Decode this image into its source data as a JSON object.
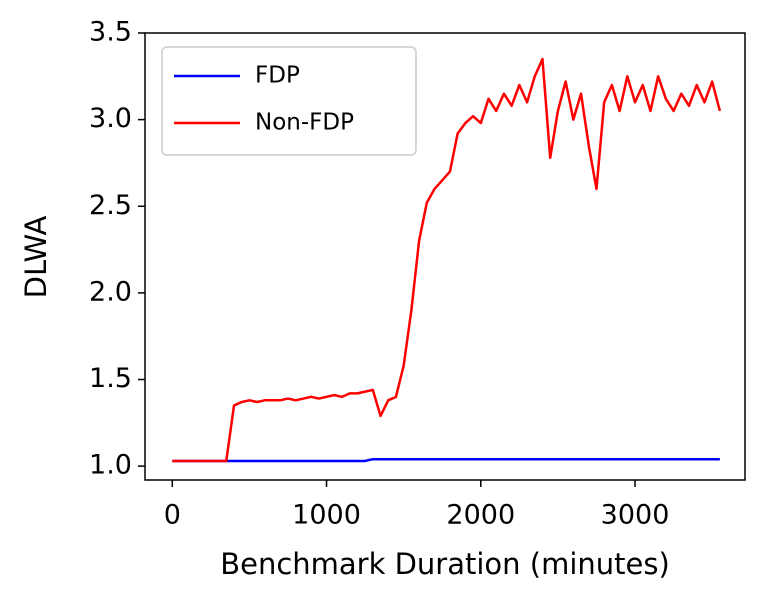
{
  "chart_data": {
    "type": "line",
    "xlabel": "Benchmark Duration (minutes)",
    "ylabel": "DLWA",
    "x": [
      0,
      50,
      100,
      150,
      200,
      250,
      300,
      350,
      400,
      450,
      500,
      550,
      600,
      650,
      700,
      750,
      800,
      850,
      900,
      950,
      1000,
      1050,
      1100,
      1150,
      1200,
      1250,
      1300,
      1350,
      1400,
      1450,
      1500,
      1550,
      1600,
      1650,
      1700,
      1750,
      1800,
      1850,
      1900,
      1950,
      2000,
      2050,
      2100,
      2150,
      2200,
      2250,
      2300,
      2350,
      2400,
      2450,
      2500,
      2550,
      2600,
      2650,
      2700,
      2750,
      2800,
      2850,
      2900,
      2950,
      3000,
      3050,
      3100,
      3150,
      3200,
      3250,
      3300,
      3350,
      3400,
      3450,
      3500,
      3550
    ],
    "series": [
      {
        "name": "FDP",
        "color": "#0000ff",
        "values": [
          1.03,
          1.03,
          1.03,
          1.03,
          1.03,
          1.03,
          1.03,
          1.03,
          1.03,
          1.03,
          1.03,
          1.03,
          1.03,
          1.03,
          1.03,
          1.03,
          1.03,
          1.03,
          1.03,
          1.03,
          1.03,
          1.03,
          1.03,
          1.03,
          1.03,
          1.03,
          1.04,
          1.04,
          1.04,
          1.04,
          1.04,
          1.04,
          1.04,
          1.04,
          1.04,
          1.04,
          1.04,
          1.04,
          1.04,
          1.04,
          1.04,
          1.04,
          1.04,
          1.04,
          1.04,
          1.04,
          1.04,
          1.04,
          1.04,
          1.04,
          1.04,
          1.04,
          1.04,
          1.04,
          1.04,
          1.04,
          1.04,
          1.04,
          1.04,
          1.04,
          1.04,
          1.04,
          1.04,
          1.04,
          1.04,
          1.04,
          1.04,
          1.04,
          1.04,
          1.04,
          1.04,
          1.04
        ]
      },
      {
        "name": "Non-FDP",
        "color": "#ff0000",
        "values": [
          1.03,
          1.03,
          1.03,
          1.03,
          1.03,
          1.03,
          1.03,
          1.03,
          1.35,
          1.37,
          1.38,
          1.37,
          1.38,
          1.38,
          1.38,
          1.39,
          1.38,
          1.39,
          1.4,
          1.39,
          1.4,
          1.41,
          1.4,
          1.42,
          1.42,
          1.43,
          1.44,
          1.29,
          1.38,
          1.4,
          1.58,
          1.9,
          2.3,
          2.52,
          2.6,
          2.65,
          2.7,
          2.92,
          2.98,
          3.02,
          2.98,
          3.12,
          3.05,
          3.15,
          3.08,
          3.2,
          3.1,
          3.25,
          3.35,
          2.78,
          3.05,
          3.22,
          3.0,
          3.15,
          2.85,
          2.6,
          3.1,
          3.2,
          3.05,
          3.25,
          3.1,
          3.2,
          3.05,
          3.25,
          3.12,
          3.05,
          3.15,
          3.08,
          3.2,
          3.1,
          3.22,
          3.05
        ]
      }
    ],
    "xlim": [
      -177,
      3713
    ],
    "ylim": [
      0.92,
      3.5
    ],
    "xticks": [
      0,
      1000,
      2000,
      3000
    ],
    "yticks": [
      {
        "value": 1,
        "label": "1.0"
      },
      1.5,
      {
        "value": 2,
        "label": "2.0"
      },
      2.5,
      {
        "value": 3,
        "label": "3.0"
      },
      3.5
    ],
    "legend": "upper left"
  }
}
